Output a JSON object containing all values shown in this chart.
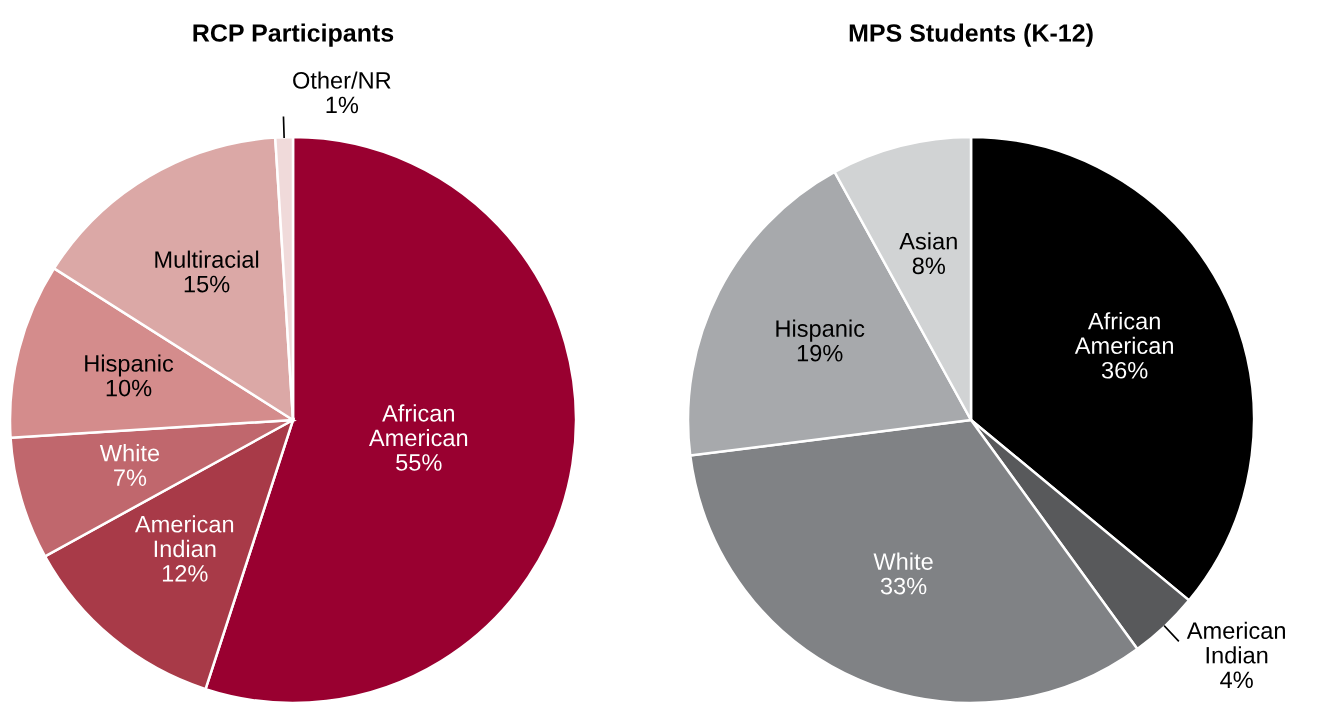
{
  "chart_data": [
    {
      "type": "pie",
      "title": "RCP Participants",
      "categories": [
        "African American",
        "American Indian",
        "White",
        "Hispanic",
        "Multiracial",
        "Other/NR"
      ],
      "values": [
        55,
        12,
        7,
        10,
        15,
        1
      ],
      "colors": [
        "#990030",
        "#a83a48",
        "#c0676d",
        "#d48c8c",
        "#dba8a6",
        "#f0dada"
      ],
      "value_labels": [
        "55%",
        "12%",
        "7%",
        "10%",
        "15%",
        "1%"
      ]
    },
    {
      "type": "pie",
      "title": "MPS Students (K-12)",
      "categories": [
        "African American",
        "American Indian",
        "White",
        "Hispanic",
        "Asian"
      ],
      "values": [
        36,
        4,
        33,
        19,
        8
      ],
      "colors": [
        "#000000",
        "#58595b",
        "#808285",
        "#a7a9ac",
        "#d1d3d4"
      ],
      "value_labels": [
        "36%",
        "4%",
        "33%",
        "19%",
        "8%"
      ]
    }
  ]
}
